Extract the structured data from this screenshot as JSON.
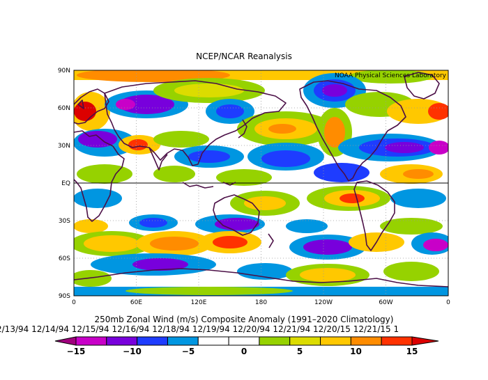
{
  "header": {
    "title": "NCEP/NCAR Reanalysis",
    "lab_label": "NOAA Physical Sciences Laboratory"
  },
  "axes": {
    "lat_labels": [
      "90N",
      "60N",
      "30N",
      "EQ",
      "30S",
      "60S",
      "90S"
    ],
    "lon_labels": [
      "0",
      "60E",
      "120E",
      "180",
      "120W",
      "60W",
      "0"
    ]
  },
  "footer": {
    "caption": "250mb Zonal Wind (m/s) Composite Anomaly (1991–2020 Climatology)",
    "dates": "2/13/94 12/14/94 12/15/94 12/16/94 12/18/94 12/19/94 12/20/94 12/21/94 12/20/15 12/21/15 1"
  },
  "colorbar": {
    "colors": [
      "#a0007d",
      "#c800c8",
      "#7800dc",
      "#1e3cff",
      "#0096e1",
      "#ffffff",
      "#ffffff",
      "#96d200",
      "#dcdc00",
      "#ffc800",
      "#ff8c00",
      "#ff3200",
      "#dc0000"
    ],
    "tick_labels": [
      "−15",
      "−10",
      "−5",
      "0",
      "5",
      "10",
      "15"
    ]
  },
  "colors": {
    "frame": "#000000",
    "coast": "#4b0f46",
    "grid": "#999999"
  }
}
